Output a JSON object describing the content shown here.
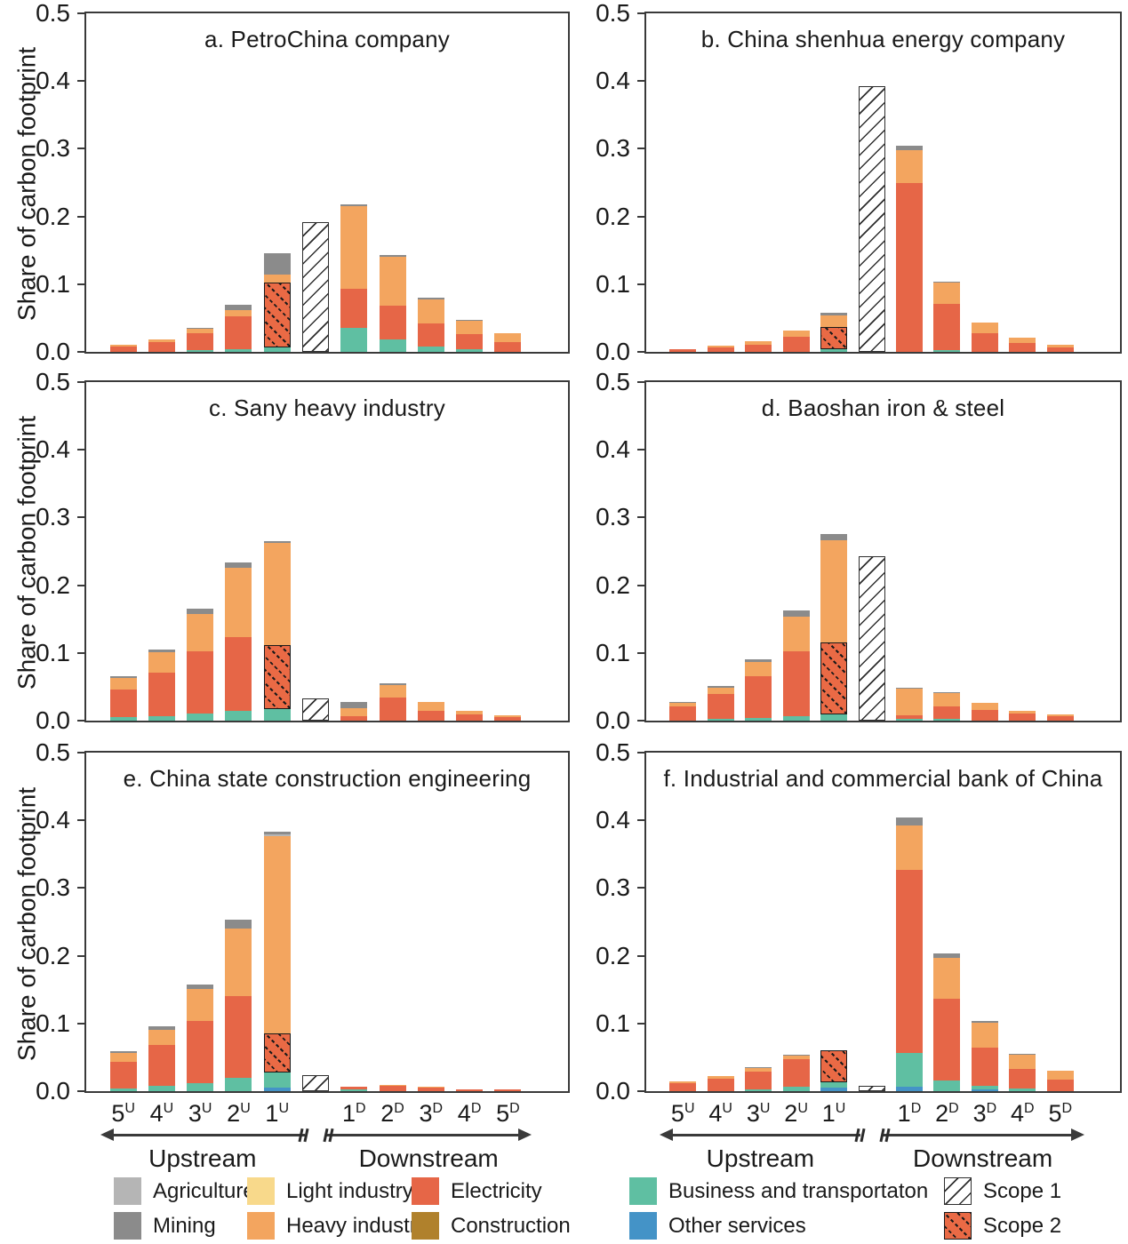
{
  "figure": {
    "ylabel": "Share of carbon footprint",
    "yticks": [
      "0.0",
      "0.1",
      "0.2",
      "0.3",
      "0.4",
      "0.5"
    ],
    "ymax": 0.5,
    "upstream_label": "Upstream",
    "downstream_label": "Downstream",
    "x_labels": [
      {
        "base": "5",
        "sup": "U"
      },
      {
        "base": "4",
        "sup": "U"
      },
      {
        "base": "3",
        "sup": "U"
      },
      {
        "base": "2",
        "sup": "U"
      },
      {
        "base": "1",
        "sup": "U"
      },
      null,
      {
        "base": "1",
        "sup": "D"
      },
      {
        "base": "2",
        "sup": "D"
      },
      {
        "base": "3",
        "sup": "D"
      },
      {
        "base": "4",
        "sup": "D"
      },
      {
        "base": "5",
        "sup": "D"
      }
    ]
  },
  "colors": {
    "other": "#4493c7",
    "business": "#5fbfa2",
    "electricity": "#e66647",
    "heavy": "#f3a55f",
    "light": "#f8d98b",
    "agriculture": "#b5b5b5",
    "mining": "#8b8b8b",
    "construction": "#b0812c",
    "scope2": "#ea6a45",
    "axis": "#3a3a3a"
  },
  "legend": {
    "rows": [
      [
        {
          "label": "Agriculture",
          "key": "agriculture"
        },
        {
          "label": "Light industry",
          "key": "light"
        },
        {
          "label": "Electricity",
          "key": "electricity"
        },
        {
          "label": "Business and transportaton",
          "key": "business"
        },
        {
          "label": "Scope 1",
          "key": "scope1",
          "pattern": "pat-scope1"
        }
      ],
      [
        {
          "label": "Mining",
          "key": "mining"
        },
        {
          "label": "Heavy industry",
          "key": "heavy"
        },
        {
          "label": "Construction",
          "key": "construction"
        },
        {
          "label": "Other services",
          "key": "other"
        },
        {
          "label": "Scope 2",
          "key": "scope2",
          "pattern": "pat-scope2"
        }
      ]
    ]
  },
  "chart_data": {
    "type": "bar",
    "stacked": true,
    "categories": [
      "5U",
      "4U",
      "3U",
      "2U",
      "1U",
      "Scope 1",
      "1D",
      "2D",
      "3D",
      "4D",
      "5D"
    ],
    "ylim": [
      0,
      0.5
    ],
    "ylabel": "Share of carbon footprint",
    "panels": [
      {
        "id": "a",
        "title": "a. PetroChina company",
        "bars": [
          {
            "label": "5U",
            "electricity": 0.008,
            "heavy": 0.003
          },
          {
            "label": "4U",
            "electricity": 0.014,
            "heavy": 0.005
          },
          {
            "label": "3U",
            "business": 0.002,
            "electricity": 0.026,
            "heavy": 0.007,
            "mining": 0.001
          },
          {
            "label": "2U",
            "business": 0.004,
            "electricity": 0.048,
            "heavy": 0.01,
            "mining": 0.007
          },
          {
            "label": "1U",
            "business": 0.007,
            "scope2": 0.096,
            "heavy": 0.011,
            "mining": 0.032
          },
          {
            "label": "Scope 1",
            "scope1": 0.191
          },
          {
            "label": "1D",
            "business": 0.036,
            "electricity": 0.057,
            "heavy": 0.122,
            "mining": 0.003
          },
          {
            "label": "2D",
            "business": 0.018,
            "electricity": 0.05,
            "heavy": 0.072,
            "mining": 0.003
          },
          {
            "label": "3D",
            "business": 0.008,
            "electricity": 0.034,
            "heavy": 0.036,
            "mining": 0.002
          },
          {
            "label": "4D",
            "business": 0.004,
            "electricity": 0.022,
            "heavy": 0.02,
            "mining": 0.001
          },
          {
            "label": "5D",
            "electricity": 0.015,
            "heavy": 0.012
          }
        ]
      },
      {
        "id": "b",
        "title": "b. China shenhua energy company",
        "bars": [
          {
            "label": "5U",
            "electricity": 0.004
          },
          {
            "label": "4U",
            "electricity": 0.007,
            "heavy": 0.002
          },
          {
            "label": "3U",
            "electricity": 0.011,
            "heavy": 0.005
          },
          {
            "label": "2U",
            "electricity": 0.022,
            "heavy": 0.009
          },
          {
            "label": "1U",
            "business": 0.004,
            "scope2": 0.033,
            "heavy": 0.017,
            "mining": 0.004
          },
          {
            "label": "Scope 1",
            "scope1": 0.392
          },
          {
            "label": "1D",
            "electricity": 0.25,
            "heavy": 0.048,
            "mining": 0.007
          },
          {
            "label": "2D",
            "business": 0.002,
            "electricity": 0.069,
            "heavy": 0.031,
            "mining": 0.002
          },
          {
            "label": "3D",
            "electricity": 0.027,
            "heavy": 0.016
          },
          {
            "label": "4D",
            "electricity": 0.013,
            "heavy": 0.008
          },
          {
            "label": "5D",
            "electricity": 0.007,
            "heavy": 0.004
          }
        ]
      },
      {
        "id": "c",
        "title": "c. Sany heavy industry",
        "bars": [
          {
            "label": "5U",
            "business": 0.005,
            "electricity": 0.041,
            "heavy": 0.017,
            "mining": 0.003
          },
          {
            "label": "4U",
            "business": 0.007,
            "electricity": 0.064,
            "heavy": 0.03,
            "mining": 0.004
          },
          {
            "label": "3U",
            "business": 0.01,
            "electricity": 0.092,
            "heavy": 0.056,
            "mining": 0.007
          },
          {
            "label": "2U",
            "business": 0.014,
            "electricity": 0.11,
            "heavy": 0.102,
            "mining": 0.008
          },
          {
            "label": "1U",
            "business": 0.017,
            "scope2": 0.094,
            "heavy": 0.151,
            "mining": 0.003
          },
          {
            "label": "Scope 1",
            "scope1": 0.033
          },
          {
            "label": "1D",
            "electricity": 0.007,
            "heavy": 0.012,
            "mining": 0.009
          },
          {
            "label": "2D",
            "electricity": 0.034,
            "heavy": 0.019,
            "mining": 0.002
          },
          {
            "label": "3D",
            "electricity": 0.015,
            "heavy": 0.012
          },
          {
            "label": "4D",
            "electricity": 0.009,
            "heavy": 0.005
          },
          {
            "label": "5D",
            "electricity": 0.005,
            "heavy": 0.003
          }
        ]
      },
      {
        "id": "d",
        "title": "d. Baoshan iron & steel",
        "bars": [
          {
            "label": "5U",
            "electricity": 0.021,
            "heavy": 0.006,
            "mining": 0.001
          },
          {
            "label": "4U",
            "business": 0.003,
            "electricity": 0.036,
            "heavy": 0.009,
            "mining": 0.003
          },
          {
            "label": "3U",
            "business": 0.004,
            "electricity": 0.061,
            "heavy": 0.021,
            "mining": 0.005
          },
          {
            "label": "2U",
            "business": 0.007,
            "electricity": 0.096,
            "heavy": 0.051,
            "mining": 0.009
          },
          {
            "label": "1U",
            "business": 0.009,
            "scope2": 0.107,
            "heavy": 0.151,
            "mining": 0.008
          },
          {
            "label": "Scope 1",
            "scope1": 0.243
          },
          {
            "label": "1D",
            "business": 0.002,
            "electricity": 0.006,
            "heavy": 0.039,
            "mining": 0.002
          },
          {
            "label": "2D",
            "business": 0.002,
            "electricity": 0.019,
            "heavy": 0.02,
            "mining": 0.001
          },
          {
            "label": "3D",
            "electricity": 0.016,
            "heavy": 0.01
          },
          {
            "label": "4D",
            "electricity": 0.01,
            "heavy": 0.005
          },
          {
            "label": "5D",
            "electricity": 0.006,
            "heavy": 0.003
          }
        ]
      },
      {
        "id": "e",
        "title": "e. China state construction engineering",
        "bars": [
          {
            "label": "5U",
            "business": 0.004,
            "electricity": 0.039,
            "heavy": 0.013,
            "mining": 0.003
          },
          {
            "label": "4U",
            "business": 0.008,
            "electricity": 0.06,
            "heavy": 0.023,
            "mining": 0.005
          },
          {
            "label": "3U",
            "business": 0.012,
            "electricity": 0.092,
            "heavy": 0.047,
            "mining": 0.007
          },
          {
            "label": "2U",
            "business": 0.02,
            "electricity": 0.12,
            "heavy": 0.1,
            "mining": 0.013
          },
          {
            "label": "1U",
            "other": 0.005,
            "business": 0.023,
            "scope2": 0.057,
            "heavy": 0.292,
            "agriculture": 0.002,
            "mining": 0.004
          },
          {
            "label": "Scope 1",
            "scope1": 0.023
          },
          {
            "label": "1D",
            "business": 0.003,
            "electricity": 0.004
          },
          {
            "label": "2D",
            "electricity": 0.008,
            "heavy": 0.001
          },
          {
            "label": "3D",
            "electricity": 0.005,
            "heavy": 0.001
          },
          {
            "label": "4D",
            "electricity": 0.003
          },
          {
            "label": "5D",
            "electricity": 0.002
          }
        ]
      },
      {
        "id": "f",
        "title": "f. Industrial and commercial bank of China",
        "bars": [
          {
            "label": "5U",
            "electricity": 0.012,
            "heavy": 0.002
          },
          {
            "label": "4U",
            "electricity": 0.018,
            "heavy": 0.005
          },
          {
            "label": "3U",
            "business": 0.003,
            "electricity": 0.026,
            "heavy": 0.006,
            "mining": 0.001
          },
          {
            "label": "2U",
            "business": 0.007,
            "electricity": 0.04,
            "heavy": 0.006,
            "mining": 0.001
          },
          {
            "label": "1U",
            "other": 0.005,
            "business": 0.008,
            "scope2": 0.047
          },
          {
            "label": "Scope 1",
            "scope1": 0.008
          },
          {
            "label": "1D",
            "other": 0.006,
            "business": 0.05,
            "electricity": 0.271,
            "heavy": 0.065,
            "mining": 0.012
          },
          {
            "label": "2D",
            "business": 0.016,
            "electricity": 0.121,
            "heavy": 0.06,
            "mining": 0.007
          },
          {
            "label": "3D",
            "other": 0.002,
            "business": 0.006,
            "electricity": 0.056,
            "heavy": 0.037,
            "mining": 0.003
          },
          {
            "label": "4D",
            "business": 0.004,
            "electricity": 0.029,
            "heavy": 0.021,
            "mining": 0.001
          },
          {
            "label": "5D",
            "electricity": 0.017,
            "heavy": 0.013
          }
        ]
      }
    ]
  }
}
